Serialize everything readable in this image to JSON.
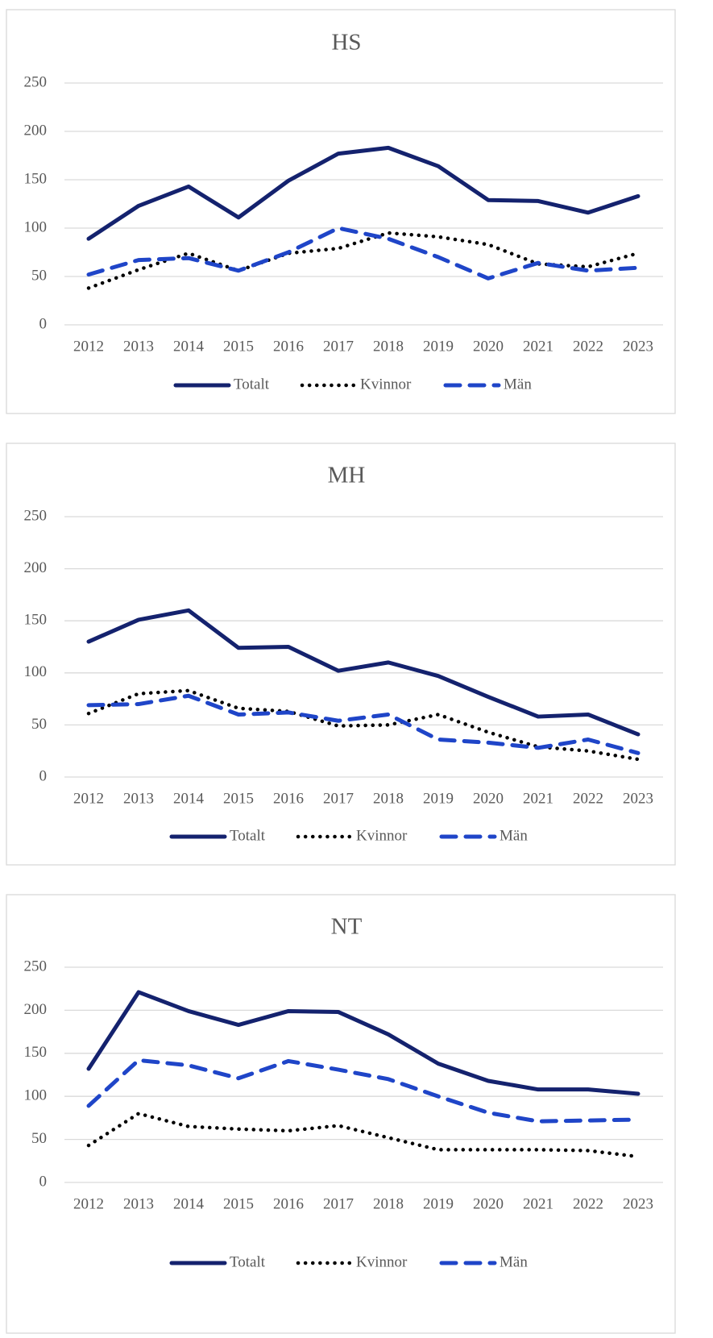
{
  "chart_data": [
    {
      "type": "line",
      "title": "HS",
      "categories": [
        "2012",
        "2013",
        "2014",
        "2015",
        "2016",
        "2017",
        "2018",
        "2019",
        "2020",
        "2021",
        "2022",
        "2023"
      ],
      "series": [
        {
          "name": "Totalt",
          "color": "#14226e",
          "style": "solid",
          "values": [
            89,
            123,
            143,
            111,
            149,
            177,
            183,
            164,
            129,
            128,
            116,
            133
          ]
        },
        {
          "name": "Kvinnor",
          "color": "#000000",
          "style": "dotted",
          "values": [
            38,
            57,
            74,
            56,
            74,
            79,
            95,
            91,
            83,
            63,
            60,
            74
          ]
        },
        {
          "name": "Män",
          "color": "#1f45c8",
          "style": "dashed",
          "values": [
            52,
            67,
            69,
            56,
            75,
            100,
            89,
            70,
            48,
            64,
            56,
            59
          ]
        }
      ],
      "ylim": [
        0,
        250
      ],
      "yticks": [
        0,
        50,
        100,
        150,
        200,
        250
      ],
      "grid": true,
      "legend": "bottom"
    },
    {
      "type": "line",
      "title": "MH",
      "categories": [
        "2012",
        "2013",
        "2014",
        "2015",
        "2016",
        "2017",
        "2018",
        "2019",
        "2020",
        "2021",
        "2022",
        "2023"
      ],
      "series": [
        {
          "name": "Totalt",
          "color": "#14226e",
          "style": "solid",
          "values": [
            130,
            151,
            160,
            124,
            125,
            102,
            110,
            97,
            77,
            58,
            60,
            41
          ]
        },
        {
          "name": "Kvinnor",
          "color": "#000000",
          "style": "dotted",
          "values": [
            61,
            80,
            83,
            66,
            63,
            49,
            50,
            60,
            43,
            29,
            25,
            17
          ]
        },
        {
          "name": "Män",
          "color": "#1f45c8",
          "style": "dashed",
          "values": [
            69,
            70,
            78,
            60,
            62,
            54,
            60,
            36,
            33,
            28,
            36,
            23
          ]
        }
      ],
      "ylim": [
        0,
        250
      ],
      "yticks": [
        0,
        50,
        100,
        150,
        200,
        250
      ],
      "grid": true,
      "legend": "bottom"
    },
    {
      "type": "line",
      "title": "NT",
      "categories": [
        "2012",
        "2013",
        "2014",
        "2015",
        "2016",
        "2017",
        "2018",
        "2019",
        "2020",
        "2021",
        "2022",
        "2023"
      ],
      "series": [
        {
          "name": "Totalt",
          "color": "#14226e",
          "style": "solid",
          "values": [
            132,
            221,
            199,
            183,
            199,
            198,
            172,
            138,
            118,
            108,
            108,
            103
          ]
        },
        {
          "name": "Kvinnor",
          "color": "#000000",
          "style": "dotted",
          "values": [
            43,
            80,
            65,
            62,
            60,
            66,
            52,
            38,
            38,
            38,
            37,
            30
          ]
        },
        {
          "name": "Män",
          "color": "#1f45c8",
          "style": "dashed",
          "values": [
            89,
            142,
            136,
            121,
            141,
            131,
            120,
            100,
            81,
            71,
            72,
            73
          ]
        }
      ],
      "ylim": [
        0,
        250
      ],
      "yticks": [
        0,
        50,
        100,
        150,
        200,
        250
      ],
      "grid": true,
      "legend": "bottom"
    }
  ]
}
